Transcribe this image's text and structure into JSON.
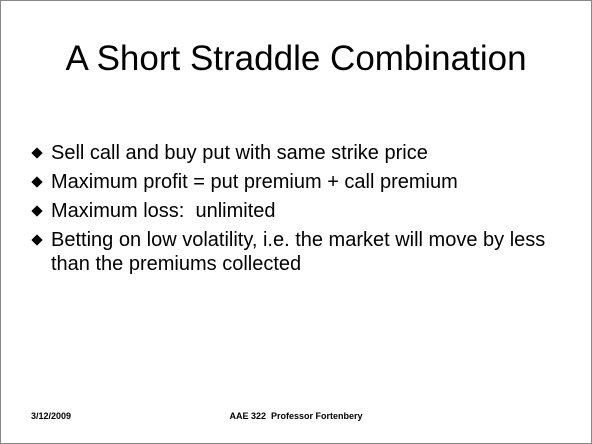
{
  "slide": {
    "title": "A Short Straddle Combination",
    "bullets": [
      "Sell call and buy put with same strike price",
      "Maximum profit = put premium + call premium",
      "Maximum loss:  unlimited",
      "Betting on low volatility, i.e. the market will move by less than the premiums collected"
    ],
    "date": "3/12/2009",
    "footer": "AAE 322  Professor Fortenbery"
  }
}
